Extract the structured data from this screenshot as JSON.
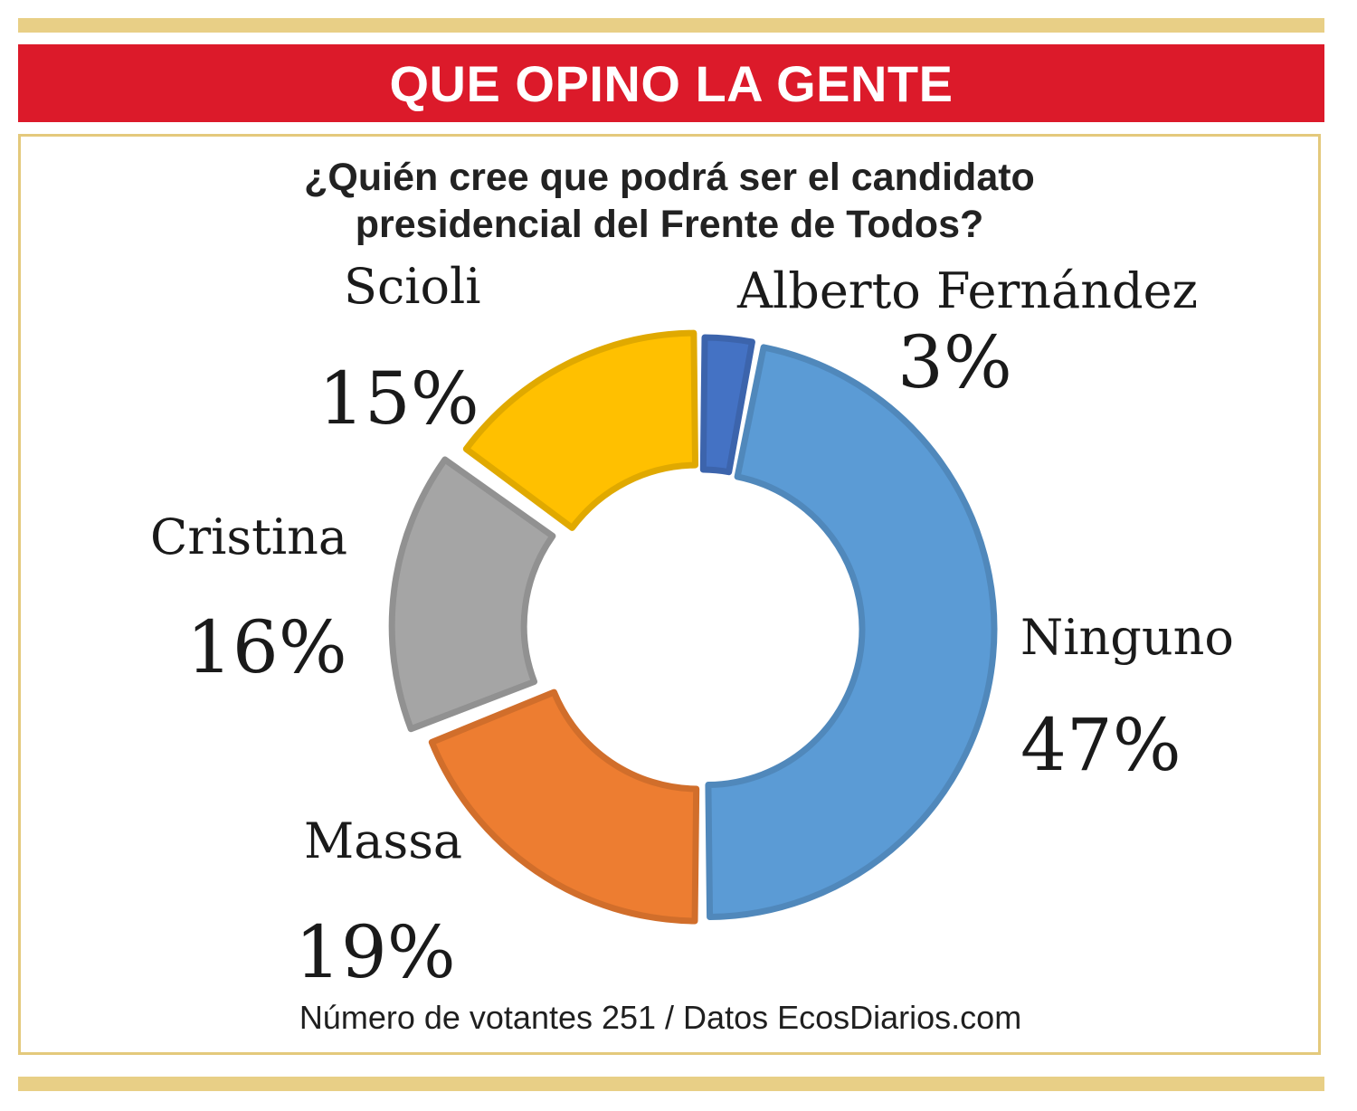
{
  "header": {
    "title": "QUE OPINO LA GENTE"
  },
  "chart_data": {
    "type": "pie",
    "variant": "donut",
    "title": "¿Quién cree que podrá ser el candidato presidencial del Frente de Todos?",
    "title_lines": [
      "¿Quién cree que podrá ser el candidato",
      "presidencial del Frente de Todos?"
    ],
    "slices": [
      {
        "name": "Alberto Fernández",
        "value": 3,
        "label": "3%",
        "color": "#4472c4"
      },
      {
        "name": "Ninguno",
        "value": 47,
        "label": "47%",
        "color": "#5b9bd5"
      },
      {
        "name": "Massa",
        "value": 19,
        "label": "19%",
        "color": "#ed7d31"
      },
      {
        "name": "Cristina",
        "value": 16,
        "label": "16%",
        "color": "#a5a5a5"
      },
      {
        "name": "Scioli",
        "value": 15,
        "label": "15%",
        "color": "#ffc000"
      }
    ],
    "unit": "%"
  },
  "footer": {
    "source": "Número de votantes 251 / Datos EcosDiarios.com"
  },
  "colors": {
    "banner": "#dc1a2a",
    "rule": "#e8cf86",
    "frame": "#e4c97c"
  }
}
